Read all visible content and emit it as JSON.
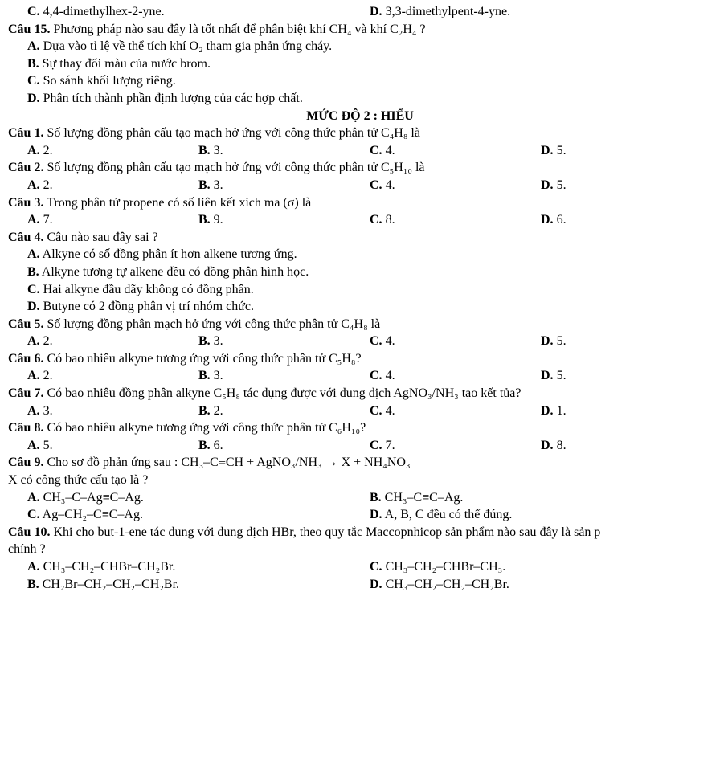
{
  "pre_options": {
    "c": {
      "label": "C.",
      "text": " 4,4-dimethylhex-2-yne."
    },
    "d": {
      "label": "D.",
      "text": " 3,3-dimethylpent-4-yne."
    }
  },
  "q15": {
    "label": "Câu 15.",
    "text": " Phương pháp nào sau đây là tốt nhất để phân biệt khí CH₄ và khí C₂H₄ ?",
    "a": {
      "label": "A.",
      "text": " Dựa vào tỉ lệ về thể tích khí O₂ tham gia phản ứng cháy."
    },
    "b": {
      "label": "B.",
      "text": " Sự thay đổi màu của nước brom."
    },
    "c": {
      "label": "C.",
      "text": " So sánh khối lượng riêng."
    },
    "d": {
      "label": "D.",
      "text": " Phân tích thành phần định lượng của các hợp chất."
    }
  },
  "section_title": "MỨC ĐỘ 2 : HIỂU",
  "q1": {
    "label": "Câu 1.",
    "text": " Số lượng đồng phân cấu tạo mạch hở ứng với công thức phân tử C₄H₈ là",
    "a": {
      "label": "A.",
      "text": " 2."
    },
    "b": {
      "label": "B.",
      "text": " 3."
    },
    "c": {
      "label": "C.",
      "text": " 4."
    },
    "d": {
      "label": "D.",
      "text": " 5."
    }
  },
  "q2": {
    "label": "Câu 2.",
    "text": " Số lượng đồng phân cấu tạo mạch hở ứng với công thức phân tử C₅H₁₀ là",
    "a": {
      "label": "A.",
      "text": " 2."
    },
    "b": {
      "label": "B.",
      "text": " 3."
    },
    "c": {
      "label": "C.",
      "text": " 4."
    },
    "d": {
      "label": "D.",
      "text": " 5."
    }
  },
  "q3": {
    "label": "Câu 3.",
    "text": " Trong phân tử propene có số liên kết xich ma (σ) là",
    "a": {
      "label": "A.",
      "text": " 7."
    },
    "b": {
      "label": "B.",
      "text": " 9."
    },
    "c": {
      "label": "C.",
      "text": " 8."
    },
    "d": {
      "label": "D.",
      "text": " 6."
    }
  },
  "q4": {
    "label": "Câu 4.",
    "text": " Câu nào sau đây sai ?",
    "a": {
      "label": "A.",
      "text": " Alkyne có số đồng phân ít hơn alkene tương ứng."
    },
    "b": {
      "label": "B.",
      "text": " Alkyne tương tự alkene đều có đồng phân hình học."
    },
    "c": {
      "label": "C.",
      "text": " Hai alkyne đầu dãy không có đồng phân."
    },
    "d": {
      "label": "D.",
      "text": " Butyne có 2 đồng phân vị trí nhóm chức."
    }
  },
  "q5": {
    "label": "Câu 5.",
    "text": " Số lượng đồng phân mạch hở ứng với công thức phân tử C₄H₈ là",
    "a": {
      "label": "A.",
      "text": " 2."
    },
    "b": {
      "label": "B.",
      "text": " 3."
    },
    "c": {
      "label": "C.",
      "text": " 4."
    },
    "d": {
      "label": "D.",
      "text": " 5."
    }
  },
  "q6": {
    "label": "Câu 6.",
    "text": " Có bao nhiêu alkyne tương ứng với công thức phân tử C₅H₈?",
    "a": {
      "label": "A.",
      "text": " 2."
    },
    "b": {
      "label": "B.",
      "text": " 3."
    },
    "c": {
      "label": "C.",
      "text": " 4."
    },
    "d": {
      "label": "D.",
      "text": " 5."
    }
  },
  "q7": {
    "label": "Câu 7.",
    "text": " Có bao nhiêu đồng phân alkyne C₅H₈ tác dụng được với dung dịch AgNO₃/NH₃ tạo kết tủa?",
    "a": {
      "label": "A.",
      "text": " 3."
    },
    "b": {
      "label": "B.",
      "text": " 2."
    },
    "c": {
      "label": "C.",
      "text": " 4."
    },
    "d": {
      "label": "D.",
      "text": " 1."
    }
  },
  "q8": {
    "label": "Câu 8.",
    "text": " Có bao nhiêu alkyne tương ứng với công thức phân tử C₆H₁₀?",
    "a": {
      "label": "A.",
      "text": " 5."
    },
    "b": {
      "label": "B.",
      "text": " 6."
    },
    "c": {
      "label": "C.",
      "text": " 7."
    },
    "d": {
      "label": "D.",
      "text": " 8."
    }
  },
  "q9": {
    "label": "Câu 9.",
    "text": " Cho sơ đồ phản ứng sau :   CH₃–C≡CH + AgNO₃/NH₃   →   X + NH₄NO₃",
    "sub": "X có công thức cấu tạo là ?",
    "a": {
      "label": "A.",
      "text": " CH₃–C–Ag≡C–Ag."
    },
    "b": {
      "label": "B.",
      "text": " CH₃–C≡C–Ag."
    },
    "c": {
      "label": "C.",
      "text": " Ag–CH₂–C≡C–Ag."
    },
    "d": {
      "label": "D.",
      "text": " A, B, C đều có thể đúng."
    }
  },
  "q10": {
    "label": "Câu 10.",
    "text": " Khi cho but-1-ene tác dụng với dung dịch HBr, theo quy tắc Maccopnhicop sản phẩm nào sau đây là sản p",
    "sub": "chính ?",
    "a": {
      "label": "A.",
      "text": " CH₃–CH₂–CHBr–CH₂Br."
    },
    "b": {
      "label": "B.",
      "text": " CH₂Br–CH₂–CH₂–CH₂Br."
    },
    "c": {
      "label": "C.",
      "text": " CH₃–CH₂–CHBr–CH₃."
    },
    "d": {
      "label": "D.",
      "text": " CH₃–CH₂–CH₂–CH₂Br."
    }
  }
}
